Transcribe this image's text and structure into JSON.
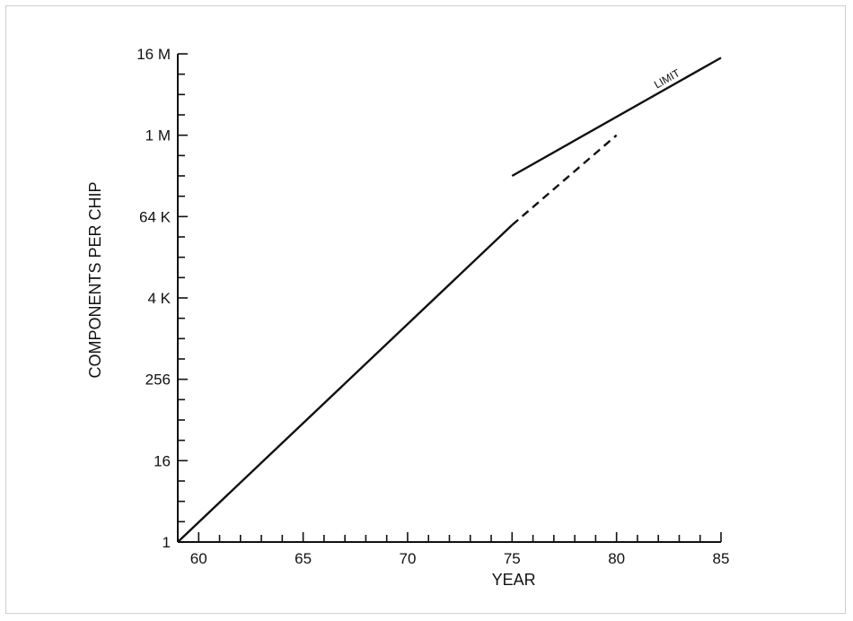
{
  "chart_data": {
    "type": "line",
    "xlabel": "YEAR",
    "ylabel": "COMPONENTS PER CHIP",
    "x_ticks": [
      "60",
      "65",
      "70",
      "75",
      "80",
      "85"
    ],
    "y_ticks": [
      "1",
      "16",
      "256",
      "4 K",
      "64 K",
      "1 M",
      "16 M"
    ],
    "xlim": [
      59,
      85
    ],
    "ylim": [
      1,
      16777216
    ],
    "y_scale": "log",
    "grid": false,
    "series": [
      {
        "style": "solid",
        "x": [
          59,
          75
        ],
        "y": [
          1,
          49152
        ]
      },
      {
        "style": "dashed",
        "x": [
          75,
          80
        ],
        "y": [
          49152,
          1048576
        ]
      },
      {
        "name": "LIMIT",
        "style": "solid",
        "x": [
          75,
          85
        ],
        "y": [
          262144,
          14680064
        ]
      }
    ],
    "annotations": [
      {
        "text": "LIMIT"
      }
    ]
  }
}
